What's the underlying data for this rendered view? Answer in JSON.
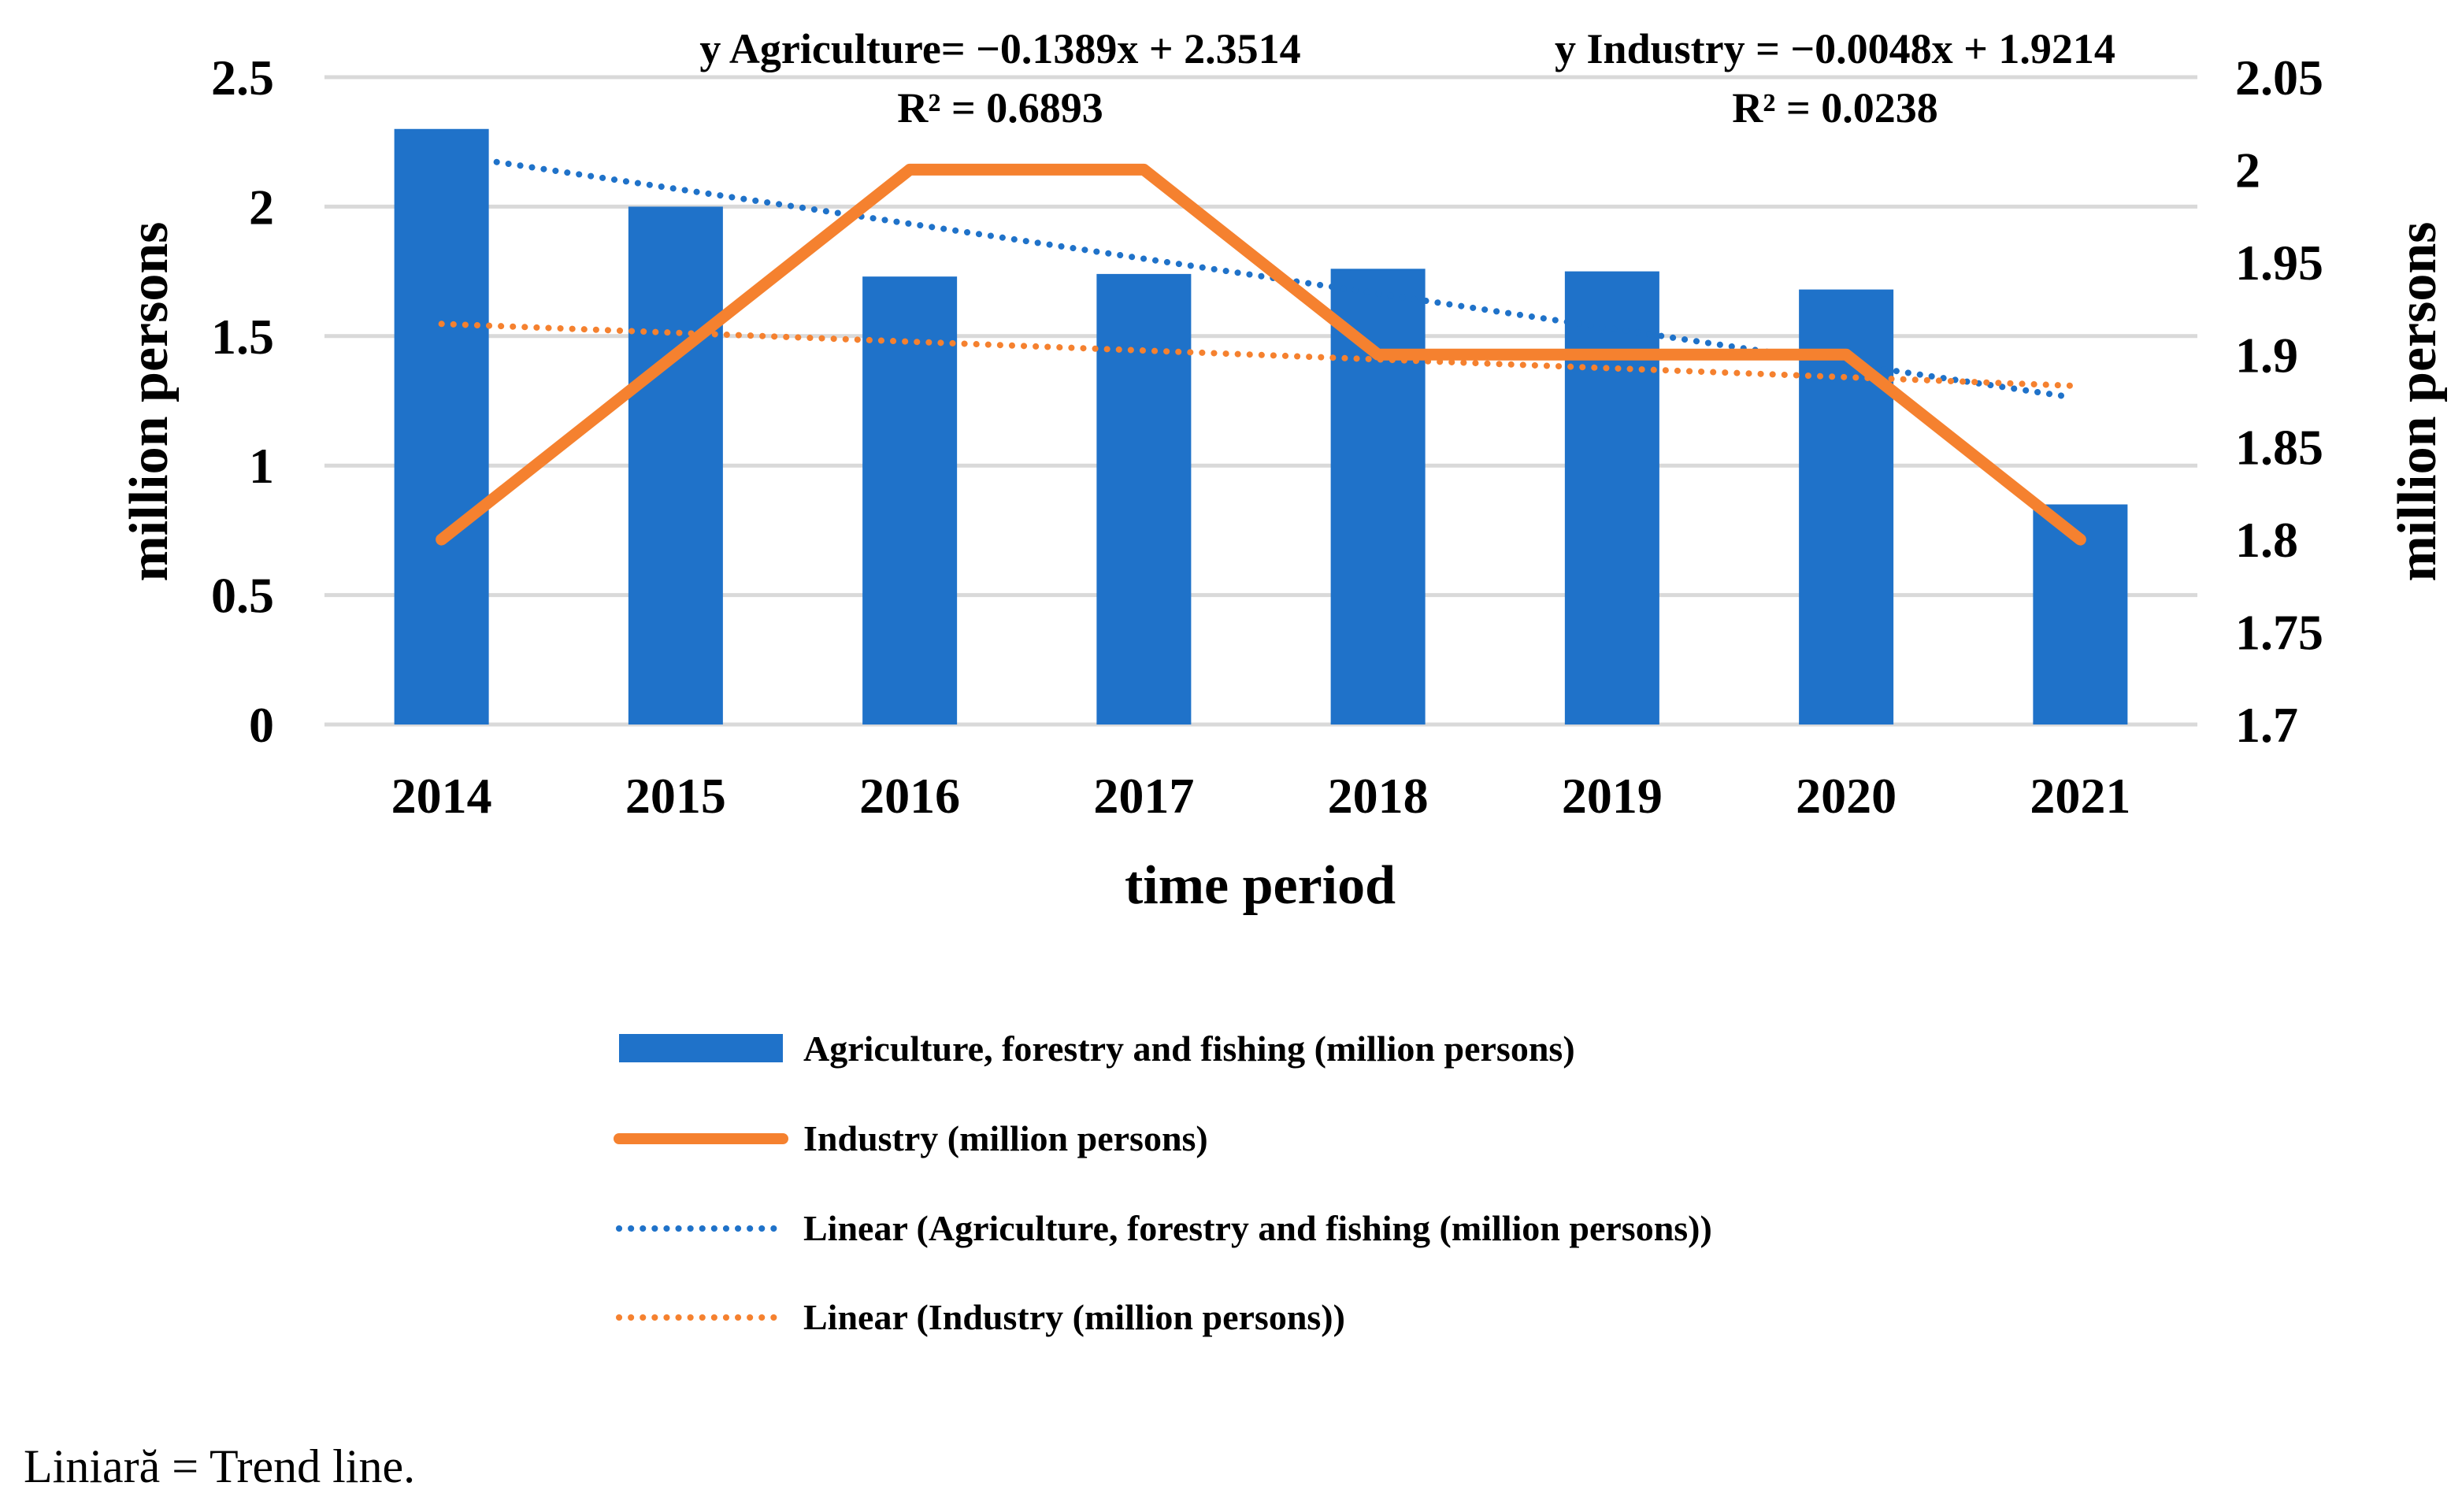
{
  "caption": "Liniară = Trend line.",
  "chart_data": {
    "type": "bar",
    "categories": [
      "2014",
      "2015",
      "2016",
      "2017",
      "2018",
      "2019",
      "2020",
      "2021"
    ],
    "xlabel": "time period",
    "ylabel_left": "million persons",
    "ylabel_right": "million persons",
    "ylim_left": [
      0,
      2.5
    ],
    "ylim_right": [
      1.7,
      2.05
    ],
    "yticks_left": [
      "0",
      "0.5",
      "1",
      "1.5",
      "2",
      "2.5"
    ],
    "yticks_right": [
      "1.7",
      "1.75",
      "1.8",
      "1.85",
      "1.9",
      "1.95",
      "2",
      "2.05"
    ],
    "grid": true,
    "legend_position": "bottom",
    "series": [
      {
        "name": "Agriculture, forestry and fishing (million persons)",
        "type": "bar",
        "axis": "left",
        "color": "#1F72C9",
        "values": [
          2.3,
          2.0,
          1.73,
          1.74,
          1.76,
          1.75,
          1.68,
          0.85
        ]
      },
      {
        "name": "Industry (million persons)",
        "type": "line",
        "axis": "right",
        "color": "#F5812F",
        "values": [
          1.8,
          1.9,
          2.0,
          2.0,
          1.9,
          1.9,
          1.9,
          1.8
        ]
      },
      {
        "name": "Linear (Agriculture, forestry and fishing (million persons))",
        "type": "trendline",
        "axis": "left",
        "color": "#1F72C9",
        "slope": -0.1389,
        "intercept": 2.3514
      },
      {
        "name": "Linear (Industry (million persons))",
        "type": "trendline",
        "axis": "right",
        "color": "#F5812F",
        "slope": -0.0048,
        "intercept": 1.9214
      }
    ],
    "annotations": [
      {
        "equation": "y Agriculture= −0.1389x + 2.3514",
        "r2": "R² = 0.6893"
      },
      {
        "equation": "y Industry = −0.0048x + 1.9214",
        "r2": "R² = 0.0238"
      }
    ]
  }
}
